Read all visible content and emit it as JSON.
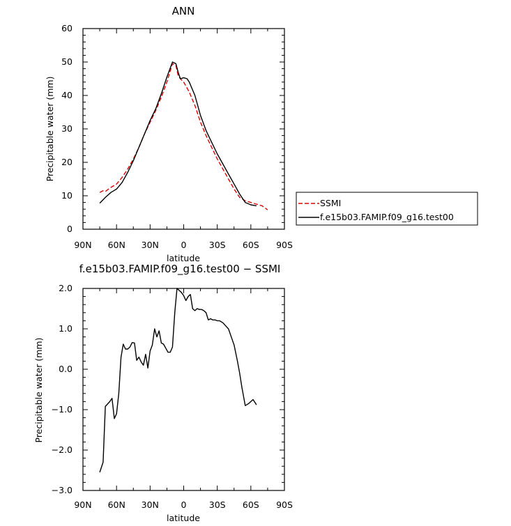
{
  "charts": [
    {
      "title": "ANN",
      "xlabel": "latitude",
      "ylabel": "Precipitable water (mm)",
      "xticks": [
        "90N",
        "60N",
        "30N",
        "0",
        "30S",
        "60S",
        "90S"
      ],
      "yticks": [
        "0",
        "10",
        "20",
        "30",
        "40",
        "50",
        "60"
      ]
    },
    {
      "title": "f.e15b03.FAMIP.f09_g16.test00 − SSMI",
      "xlabel": "latitude",
      "ylabel": "Precipitable water (mm)",
      "xticks": [
        "90N",
        "60N",
        "30N",
        "0",
        "30S",
        "60S",
        "90S"
      ],
      "yticks": [
        "−3.0",
        "−2.0",
        "−1.0",
        "0.0",
        "1.0",
        "2.0"
      ]
    }
  ],
  "legend": {
    "items": [
      {
        "label": "SSMI",
        "color": "#dd0000",
        "dash": "dashed"
      },
      {
        "label": "f.e15b03.FAMIP.f09_g16.test00",
        "color": "#000000",
        "dash": "solid"
      }
    ]
  },
  "chart_data": [
    {
      "type": "line",
      "title": "ANN",
      "xlabel": "latitude",
      "ylabel": "Precipitable water (mm)",
      "x_axis_note": "latitude in degrees, north positive; axis runs 90N (left) to 90S (right)",
      "xlim": [
        90,
        -90
      ],
      "ylim": [
        0,
        60
      ],
      "grid": false,
      "legend_position": "right",
      "series": [
        {
          "name": "SSMI",
          "color": "#dd0000",
          "dash": "dashed",
          "x": [
            75,
            72,
            70,
            65,
            60,
            55,
            50,
            45,
            40,
            35,
            30,
            25,
            20,
            15,
            10,
            7,
            5,
            3,
            0,
            -5,
            -10,
            -15,
            -20,
            -25,
            -30,
            -35,
            -40,
            -45,
            -50,
            -55,
            -60,
            -65,
            -70,
            -75
          ],
          "y": [
            11.0,
            11.5,
            11.3,
            12.5,
            13.5,
            15.5,
            18.0,
            21.0,
            24.5,
            28.5,
            32.0,
            35.5,
            39.5,
            44.0,
            49.5,
            49.0,
            46.0,
            45.0,
            44.0,
            41.0,
            37.0,
            32.0,
            28.0,
            24.5,
            21.0,
            18.0,
            15.0,
            12.0,
            9.5,
            8.5,
            8.0,
            7.5,
            7.0,
            5.8
          ]
        },
        {
          "name": "f.e15b03.FAMIP.f09_g16.test00",
          "color": "#000000",
          "dash": "solid",
          "x": [
            75,
            70,
            65,
            60,
            55,
            50,
            45,
            40,
            35,
            30,
            25,
            20,
            15,
            10,
            7,
            5,
            3,
            0,
            -3,
            -5,
            -10,
            -15,
            -20,
            -25,
            -30,
            -35,
            -40,
            -45,
            -50,
            -55,
            -60,
            -65
          ],
          "y": [
            7.8,
            9.5,
            11.0,
            12.0,
            14.0,
            17.0,
            20.5,
            24.5,
            28.5,
            32.5,
            36.0,
            40.5,
            45.5,
            50.0,
            49.5,
            47.0,
            45.0,
            45.3,
            45.0,
            44.0,
            40.0,
            34.0,
            29.5,
            26.0,
            22.5,
            19.5,
            16.5,
            13.5,
            10.5,
            8.0,
            7.3,
            7.0
          ]
        }
      ]
    },
    {
      "type": "line",
      "title": "f.e15b03.FAMIP.f09_g16.test00 − SSMI",
      "xlabel": "latitude",
      "ylabel": "Precipitable water (mm)",
      "x_axis_note": "latitude in degrees, north positive; axis runs 90N (left) to 90S (right)",
      "xlim": [
        90,
        -90
      ],
      "ylim": [
        -3.0,
        2.0
      ],
      "grid": false,
      "series": [
        {
          "color": "#000000",
          "dash": "solid",
          "x": [
            75,
            72,
            70,
            66,
            64,
            62,
            60,
            58,
            56,
            54,
            52,
            50,
            48,
            46,
            44,
            42,
            40,
            38,
            36,
            34,
            32,
            30,
            28,
            26,
            24,
            22,
            20,
            18,
            16,
            14,
            12,
            10,
            8,
            6,
            4,
            2,
            0,
            -2,
            -4,
            -6,
            -8,
            -10,
            -12,
            -14,
            -16,
            -18,
            -20,
            -22,
            -24,
            -26,
            -28,
            -30,
            -32,
            -35,
            -40,
            -45,
            -48,
            -50,
            -52,
            -55,
            -58,
            -60,
            -62,
            -65
          ],
          "y": [
            -2.55,
            -2.3,
            -0.92,
            -0.8,
            -0.72,
            -1.22,
            -1.1,
            -0.6,
            0.3,
            0.62,
            0.5,
            0.5,
            0.55,
            0.66,
            0.65,
            0.22,
            0.3,
            0.18,
            0.1,
            0.37,
            0.03,
            0.45,
            0.6,
            1.0,
            0.8,
            0.95,
            0.65,
            0.62,
            0.52,
            0.42,
            0.42,
            0.55,
            1.4,
            2.0,
            1.95,
            1.9,
            1.82,
            1.7,
            1.8,
            1.85,
            1.5,
            1.45,
            1.5,
            1.48,
            1.48,
            1.45,
            1.4,
            1.22,
            1.25,
            1.22,
            1.22,
            1.2,
            1.2,
            1.15,
            1.0,
            0.6,
            0.2,
            -0.1,
            -0.45,
            -0.9,
            -0.85,
            -0.8,
            -0.75,
            -0.88
          ]
        }
      ]
    }
  ]
}
